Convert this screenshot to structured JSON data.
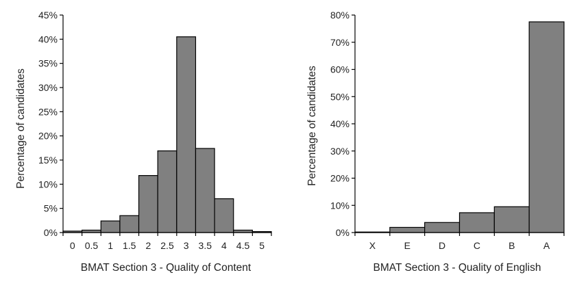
{
  "chart_data": [
    {
      "type": "bar",
      "xlabel": "BMAT Section 3 - Quality of Content",
      "ylabel": "Percentage of candidates",
      "ylim": [
        0,
        45
      ],
      "yticks": [
        "0%",
        "5%",
        "10%",
        "15%",
        "20%",
        "25%",
        "30%",
        "35%",
        "40%",
        "45%"
      ],
      "x_tick_labels": [
        "0",
        "0.5",
        "1",
        "1.5",
        "2",
        "2.5",
        "3",
        "3.5",
        "4",
        "4.5",
        "5"
      ],
      "values": [
        0.3,
        0.5,
        2.4,
        3.5,
        11.8,
        16.9,
        40.5,
        17.4,
        7.0,
        0.5,
        0.2
      ],
      "grid": false
    },
    {
      "type": "bar",
      "xlabel": "BMAT Section 3 - Quality of English",
      "ylabel": "Percentage of candidates",
      "ylim": [
        0,
        80
      ],
      "yticks": [
        "0%",
        "10%",
        "20%",
        "30%",
        "40%",
        "50%",
        "60%",
        "70%",
        "80%"
      ],
      "categories": [
        "X",
        "E",
        "D",
        "C",
        "B",
        "A"
      ],
      "values": [
        0.2,
        1.9,
        3.7,
        7.3,
        9.5,
        77.5
      ],
      "grid": false
    }
  ]
}
